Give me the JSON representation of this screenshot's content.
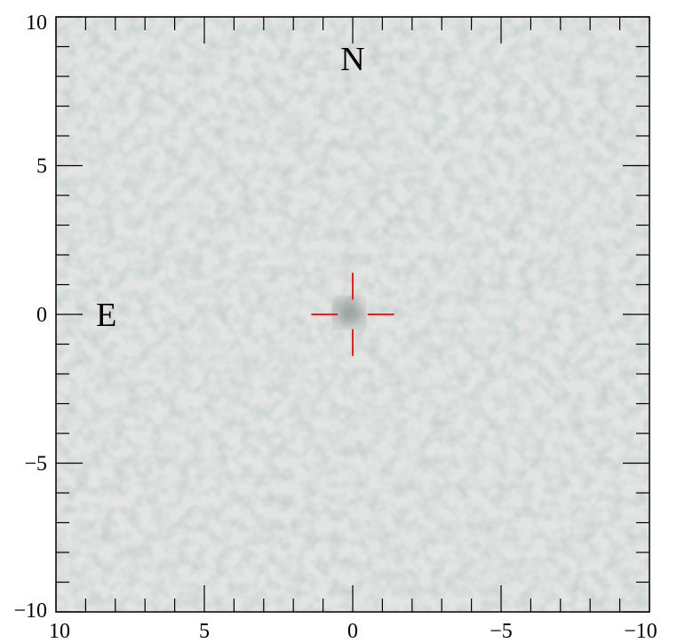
{
  "chart_data": {
    "type": "heatmap",
    "xlim": [
      10,
      -10
    ],
    "ylim": [
      -10,
      10
    ],
    "xticks": [
      {
        "value": 10,
        "label": "10"
      },
      {
        "value": 5,
        "label": "5"
      },
      {
        "value": 0,
        "label": "0"
      },
      {
        "value": -5,
        "label": "−5"
      },
      {
        "value": -10,
        "label": "−10"
      }
    ],
    "yticks": [
      {
        "value": 10,
        "label": "10"
      },
      {
        "value": 5,
        "label": "5"
      },
      {
        "value": 0,
        "label": "0"
      },
      {
        "value": -5,
        "label": "−5"
      },
      {
        "value": -10,
        "label": "−10"
      }
    ],
    "minor_tick_step": 1,
    "annotations": [
      {
        "text": "N",
        "x": 0,
        "y": 8.6
      },
      {
        "text": "E",
        "x": 8.3,
        "y": 0
      }
    ],
    "crosshair": {
      "x": 0,
      "y": 0,
      "gap": 0.5,
      "arm": 1.4,
      "color": "#ff0000"
    },
    "source": {
      "x": 0,
      "y": 0
    }
  }
}
